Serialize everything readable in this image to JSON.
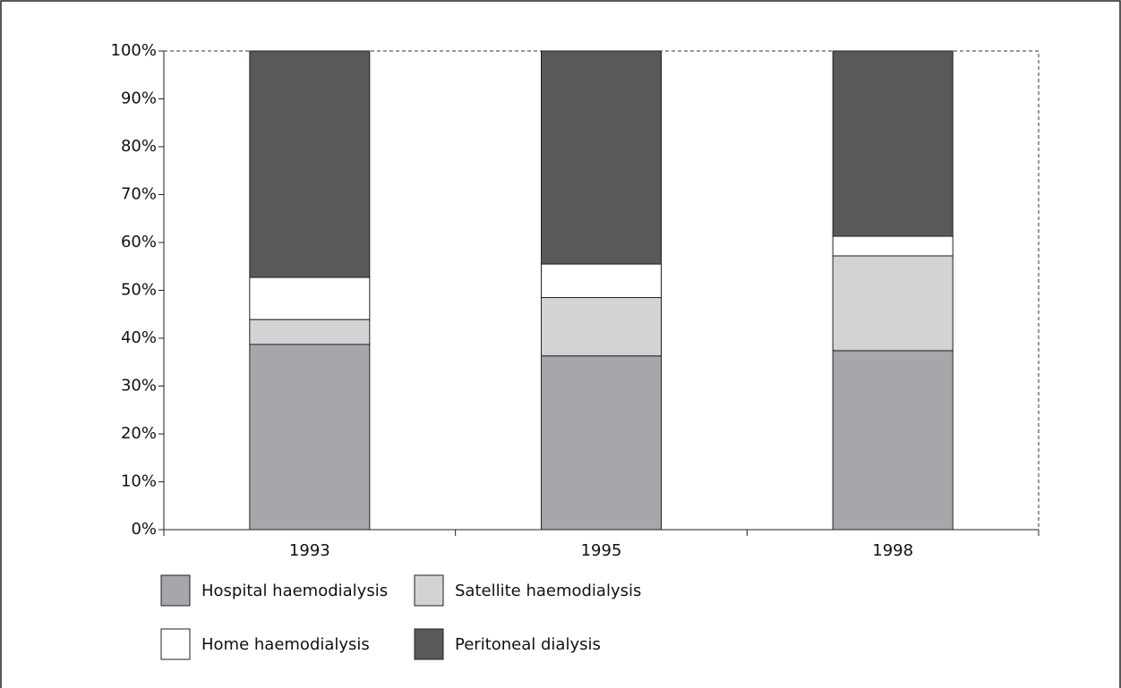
{
  "chart_data": {
    "type": "stacked_bar",
    "categories": [
      "1993",
      "1995",
      "1998"
    ],
    "series": [
      {
        "name": "Hospital haemodialysis",
        "color": "#a6a7aa",
        "values": [
          38.7,
          36.3,
          37.4
        ]
      },
      {
        "name": "Satellite haemodialysis",
        "color": "#d2d3d5",
        "values": [
          5.2,
          12.2,
          19.8
        ]
      },
      {
        "name": "Home haemodialysis",
        "color": "#ffffff",
        "values": [
          8.8,
          7.0,
          4.1
        ]
      },
      {
        "name": "Peritoneal dialysis",
        "color": "#58595b",
        "values": [
          47.3,
          44.5,
          38.7
        ]
      }
    ],
    "ylim": [
      0,
      100
    ],
    "yticks": [
      {
        "value": 0,
        "label": "0%"
      },
      {
        "value": 10,
        "label": "10%"
      },
      {
        "value": 20,
        "label": "20%"
      },
      {
        "value": 30,
        "label": "30%"
      },
      {
        "value": 40,
        "label": "40%"
      },
      {
        "value": 50,
        "label": "50%"
      },
      {
        "value": 60,
        "label": "60%"
      },
      {
        "value": 70,
        "label": "70%"
      },
      {
        "value": 80,
        "label": "80%"
      },
      {
        "value": 90,
        "label": "90%"
      },
      {
        "value": 100,
        "label": "100%"
      }
    ],
    "grid": false
  }
}
